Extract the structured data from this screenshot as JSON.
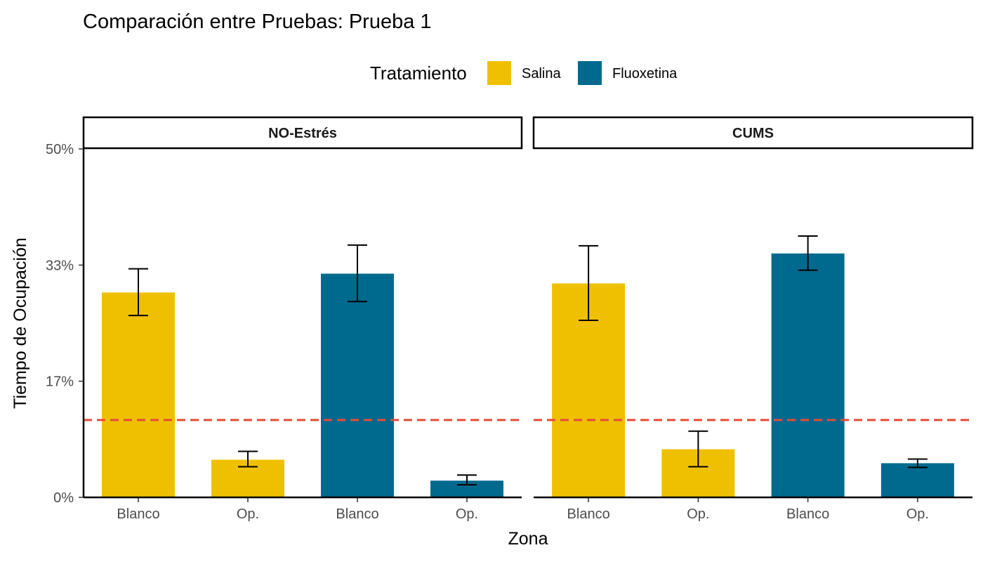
{
  "chart_data": {
    "type": "bar",
    "title": "Comparación entre Pruebas: Prueba 1",
    "xlabel": "Zona",
    "ylabel": "Tiempo de Ocupación",
    "ylim": [
      0,
      0.5
    ],
    "yticks": [
      {
        "value": 0,
        "label": "0%"
      },
      {
        "value": 0.1667,
        "label": "17%"
      },
      {
        "value": 0.3333,
        "label": "33%"
      },
      {
        "value": 0.5,
        "label": "50%"
      }
    ],
    "legend": {
      "title": "Tratamiento",
      "position": "top",
      "entries": [
        {
          "name": "Salina",
          "color": "#EFC000"
        },
        {
          "name": "Fluoxetina",
          "color": "#006A8E"
        }
      ]
    },
    "reference_line": {
      "y": 0.111,
      "color": "#E64B35",
      "style": "dashed"
    },
    "errorbar_color": "#000000",
    "grid": false,
    "panels": [
      {
        "name": "NO-Estrés",
        "bars": [
          {
            "zona": "Blanco",
            "tratamiento": "Salina",
            "value": 0.294,
            "err_low": 0.261,
            "err_high": 0.328
          },
          {
            "zona": "Op.",
            "tratamiento": "Salina",
            "value": 0.054,
            "err_low": 0.044,
            "err_high": 0.066
          },
          {
            "zona": "Blanco",
            "tratamiento": "Fluoxetina",
            "value": 0.321,
            "err_low": 0.281,
            "err_high": 0.362
          },
          {
            "zona": "Op.",
            "tratamiento": "Fluoxetina",
            "value": 0.024,
            "err_low": 0.018,
            "err_high": 0.032
          }
        ]
      },
      {
        "name": "CUMS",
        "bars": [
          {
            "zona": "Blanco",
            "tratamiento": "Salina",
            "value": 0.307,
            "err_low": 0.254,
            "err_high": 0.361
          },
          {
            "zona": "Op.",
            "tratamiento": "Salina",
            "value": 0.069,
            "err_low": 0.044,
            "err_high": 0.095
          },
          {
            "zona": "Blanco",
            "tratamiento": "Fluoxetina",
            "value": 0.35,
            "err_low": 0.326,
            "err_high": 0.375
          },
          {
            "zona": "Op.",
            "tratamiento": "Fluoxetina",
            "value": 0.049,
            "err_low": 0.043,
            "err_high": 0.055
          }
        ]
      }
    ]
  }
}
